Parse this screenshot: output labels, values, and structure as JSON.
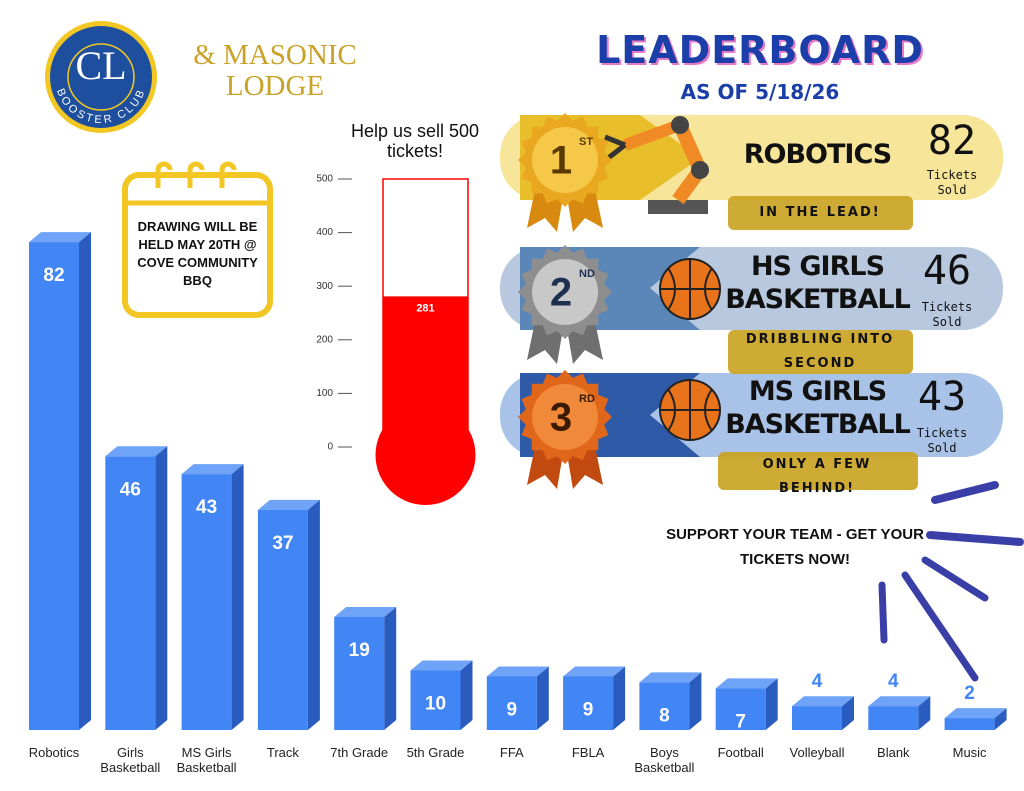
{
  "logo": {
    "letters": "CL",
    "ring": "BOOSTER CLUB"
  },
  "partner": "& MASONIC LODGE",
  "leaderboard": {
    "title": "LEADERBOARD",
    "date": "AS OF 5/18/26",
    "entries": [
      {
        "place": "1",
        "suffix": "ST",
        "team": "ROBOTICS",
        "count": 82,
        "unit": "Tickets Sold",
        "tagline": "IN THE LEAD!"
      },
      {
        "place": "2",
        "suffix": "ND",
        "team": "HS GIRLS BASKETBALL",
        "count": 46,
        "unit": "Tickets Sold",
        "tagline": "DRIBBLING INTO SECOND"
      },
      {
        "place": "3",
        "suffix": "RD",
        "team": "MS GIRLS BASKETBALL",
        "count": 43,
        "unit": "Tickets Sold",
        "tagline": "ONLY A FEW BEHIND!"
      }
    ]
  },
  "drawing_note": "DRAWING WILL BE HELD MAY 20TH @ COVE COMMUNITY BBQ",
  "cta": "SUPPORT YOUR TEAM - GET YOUR TICKETS NOW!",
  "chart_data": [
    {
      "type": "bar",
      "categories": [
        "Robotics",
        "Girls Basketball",
        "MS Girls Basketball",
        "Track",
        "7th Grade",
        "5th Grade",
        "FFA",
        "FBLA",
        "Boys Basketball",
        "Football",
        "Volleyball",
        "Blank",
        "Music"
      ],
      "values": [
        82,
        46,
        43,
        37,
        19,
        10,
        9,
        9,
        8,
        7,
        4,
        4,
        2
      ],
      "color": "#4285f4"
    },
    {
      "type": "thermometer",
      "title": "Help us sell 500 tickets!",
      "values": [
        281
      ],
      "color": "#ff0000",
      "ylim": [
        0,
        500
      ],
      "yticks": [
        0,
        100,
        200,
        300,
        400,
        500
      ]
    }
  ]
}
